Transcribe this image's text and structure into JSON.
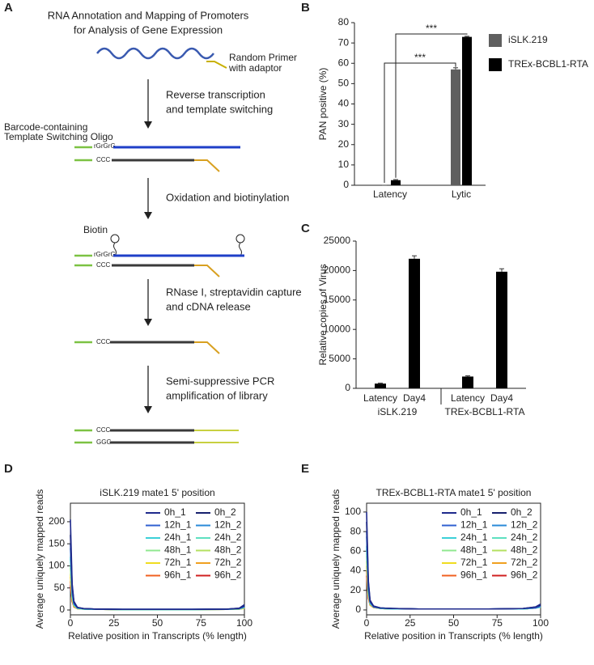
{
  "panel_labels": [
    "A",
    "B",
    "C",
    "D",
    "E"
  ],
  "diagram": {
    "title": [
      "RNA Annotation and Mapping of Promoters",
      "for Analysis of Gene Expression"
    ],
    "primer_label": [
      "Random Primer",
      "with adaptor"
    ],
    "tso_label": [
      "Barcode-containing",
      "Template Switching Oligo"
    ],
    "steps": [
      [
        "Reverse transcription",
        "and template switching"
      ],
      [
        "Oxidation and biotinylation"
      ],
      [
        "RNase I, streptavidin capture",
        "and cDNA release"
      ],
      [
        "Semi-suppressive PCR",
        "amplification of library"
      ]
    ],
    "biotin": "Biotin",
    "strand_labels": [
      "rGrGrG",
      "CCC",
      "rGrGrG",
      "CCC",
      "CCC",
      "CCC",
      "GGG"
    ]
  },
  "chart_data": [
    {
      "type": "bar",
      "ylabel": "PAN positive (%)",
      "categories": [
        "Latency",
        "Lytic"
      ],
      "series": [
        {
          "name": "iSLK.219",
          "color": "#5f5f5f",
          "values": [
            0,
            57
          ],
          "errors": [
            0,
            0.8
          ]
        },
        {
          "name": "TREx-BCBL1-RTA",
          "color": "#000000",
          "values": [
            2.5,
            73
          ],
          "errors": [
            0.3,
            0.3
          ]
        }
      ],
      "ylim": [
        0,
        80
      ],
      "yticks": [
        0,
        10,
        20,
        30,
        40,
        50,
        60,
        70,
        80
      ],
      "annotations": [
        "***",
        "***"
      ],
      "legend": "right"
    },
    {
      "type": "bar",
      "ylabel": "Relative copies of Virus",
      "categories": [
        "Latency",
        "Day4",
        "Latency",
        "Day4"
      ],
      "groups": [
        "iSLK.219",
        "TREx-BCBL1-RTA"
      ],
      "values": [
        800,
        22000,
        2000,
        19800
      ],
      "errors": [
        80,
        500,
        120,
        500
      ],
      "color": "#000000",
      "ylim": [
        0,
        25000
      ],
      "yticks": [
        0,
        5000,
        10000,
        15000,
        20000,
        25000
      ]
    },
    {
      "type": "line",
      "title": "iSLK.219 mate1 5' position",
      "xlabel": "Relative position in Transcripts (% length)",
      "ylabel": "Average uniquely mapped reads",
      "x": [
        0,
        1,
        2,
        4,
        8,
        15,
        30,
        50,
        70,
        90,
        97,
        100
      ],
      "xlim": [
        0,
        100
      ],
      "xticks": [
        0,
        25,
        50,
        75,
        100
      ],
      "ylim": [
        -11,
        242
      ],
      "yticks": [
        0,
        50,
        100,
        150,
        200
      ],
      "series": [
        {
          "name": "0h_1",
          "color": "#1f2a8c",
          "values": [
            205,
            60,
            20,
            6,
            3,
            2,
            1.5,
            1.5,
            1.5,
            2,
            4,
            12
          ]
        },
        {
          "name": "0h_2",
          "color": "#16206e",
          "values": [
            170,
            55,
            18,
            6,
            3,
            2,
            1.5,
            1.5,
            1.5,
            2,
            4,
            10
          ]
        },
        {
          "name": "12h_1",
          "color": "#3060d0",
          "values": [
            150,
            45,
            15,
            5,
            3,
            2,
            1.5,
            1.5,
            1.5,
            2,
            3,
            8
          ]
        },
        {
          "name": "12h_2",
          "color": "#2a8ad8",
          "values": [
            140,
            40,
            14,
            5,
            3,
            2,
            1.5,
            1.5,
            1.5,
            2,
            3,
            7
          ]
        },
        {
          "name": "24h_1",
          "color": "#3cd0d8",
          "values": [
            120,
            35,
            12,
            4,
            2,
            1.5,
            1,
            1,
            1,
            1.5,
            3,
            6
          ]
        },
        {
          "name": "24h_2",
          "color": "#5ee0c0",
          "values": [
            115,
            33,
            12,
            4,
            2,
            1.5,
            1,
            1,
            1,
            1.5,
            3,
            6
          ]
        },
        {
          "name": "48h_1",
          "color": "#90e890",
          "values": [
            100,
            30,
            10,
            4,
            2,
            1.5,
            1,
            1,
            1,
            1.5,
            2,
            5
          ]
        },
        {
          "name": "48h_2",
          "color": "#b4e060",
          "values": [
            95,
            28,
            10,
            4,
            2,
            1.5,
            1,
            1,
            1,
            1.5,
            2,
            5
          ]
        },
        {
          "name": "72h_1",
          "color": "#f0dc20",
          "values": [
            80,
            25,
            9,
            3,
            2,
            1.5,
            1,
            1,
            1,
            1.5,
            2,
            4
          ]
        },
        {
          "name": "72h_2",
          "color": "#f0a020",
          "values": [
            75,
            24,
            8,
            3,
            2,
            1.5,
            1,
            1,
            1,
            1.5,
            2,
            4
          ]
        },
        {
          "name": "96h_1",
          "color": "#f06020",
          "values": [
            65,
            22,
            8,
            3,
            2,
            1.5,
            1,
            1,
            1,
            1.5,
            2,
            4
          ]
        },
        {
          "name": "96h_2",
          "color": "#d02020",
          "values": [
            55,
            20,
            7,
            3,
            2,
            1.5,
            1,
            1,
            1,
            1.5,
            2,
            4
          ]
        }
      ]
    },
    {
      "type": "line",
      "title": "TREx-BCBL1-RTA mate1 5' position",
      "xlabel": "Relative position in Transcripts (% length)",
      "ylabel": "Average uniquely mapped reads",
      "x": [
        0,
        1,
        2,
        4,
        8,
        15,
        30,
        50,
        70,
        90,
        97,
        100
      ],
      "xlim": [
        0,
        100
      ],
      "xticks": [
        0,
        25,
        50,
        75,
        100
      ],
      "ylim": [
        -5,
        109
      ],
      "yticks": [
        0,
        20,
        40,
        60,
        80,
        100
      ],
      "series": [
        {
          "name": "0h_1",
          "color": "#1f2a8c",
          "values": [
            100,
            30,
            10,
            4,
            2,
            1.5,
            1,
            1,
            1,
            1.5,
            3,
            6
          ]
        },
        {
          "name": "0h_2",
          "color": "#16206e",
          "values": [
            90,
            28,
            9,
            4,
            2,
            1.5,
            1,
            1,
            1,
            1.5,
            3,
            5
          ]
        },
        {
          "name": "12h_1",
          "color": "#3060d0",
          "values": [
            80,
            25,
            8,
            3,
            2,
            1.5,
            1,
            1,
            1,
            1.5,
            2,
            4
          ]
        },
        {
          "name": "12h_2",
          "color": "#2a8ad8",
          "values": [
            75,
            24,
            8,
            3,
            2,
            1.5,
            1,
            1,
            1,
            1.5,
            2,
            4
          ]
        },
        {
          "name": "24h_1",
          "color": "#3cd0d8",
          "values": [
            65,
            20,
            7,
            3,
            1.5,
            1,
            1,
            1,
            1,
            1,
            2,
            3
          ]
        },
        {
          "name": "24h_2",
          "color": "#5ee0c0",
          "values": [
            62,
            20,
            7,
            3,
            1.5,
            1,
            1,
            1,
            1,
            1,
            2,
            3
          ]
        },
        {
          "name": "48h_1",
          "color": "#90e890",
          "values": [
            58,
            18,
            6,
            3,
            1.5,
            1,
            1,
            1,
            1,
            1,
            2,
            3
          ]
        },
        {
          "name": "48h_2",
          "color": "#b4e060",
          "values": [
            55,
            17,
            6,
            3,
            1.5,
            1,
            1,
            1,
            1,
            1,
            2,
            3
          ]
        },
        {
          "name": "72h_1",
          "color": "#f0dc20",
          "values": [
            50,
            16,
            6,
            2.5,
            1.5,
            1,
            1,
            1,
            1,
            1,
            2,
            3
          ]
        },
        {
          "name": "72h_2",
          "color": "#f0a020",
          "values": [
            45,
            15,
            5,
            2.5,
            1.5,
            1,
            1,
            1,
            1,
            1,
            2,
            3
          ]
        },
        {
          "name": "96h_1",
          "color": "#f06020",
          "values": [
            40,
            14,
            5,
            2.5,
            1.5,
            1,
            1,
            1,
            1,
            1,
            2,
            3
          ]
        },
        {
          "name": "96h_2",
          "color": "#d02020",
          "values": [
            35,
            12,
            5,
            2.5,
            1.5,
            1,
            1,
            1,
            1,
            1,
            2,
            3
          ]
        }
      ]
    }
  ]
}
